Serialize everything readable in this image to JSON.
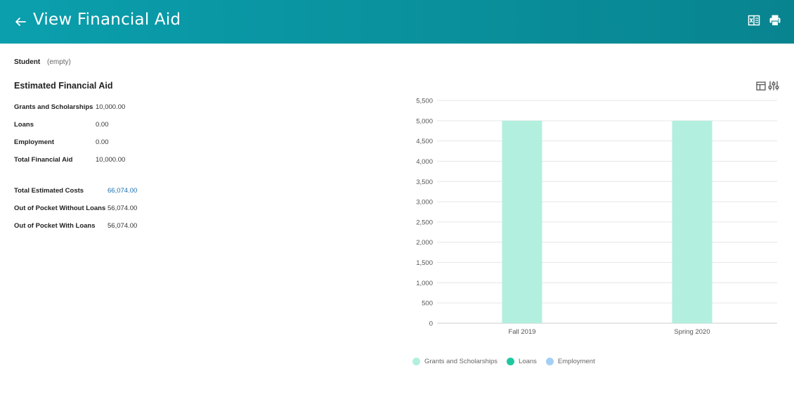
{
  "header": {
    "title": "View Financial Aid",
    "back_icon": "arrow-left-icon",
    "actions": [
      "excel-export-icon",
      "print-icon"
    ],
    "background": "#0a97a4"
  },
  "student": {
    "label": "Student",
    "value": "(empty)"
  },
  "estimated": {
    "title": "Estimated Financial Aid",
    "rows": [
      {
        "label": "Grants and Scholarships",
        "value": "10,000.00"
      },
      {
        "label": "Loans",
        "value": "0.00"
      },
      {
        "label": "Employment",
        "value": "0.00"
      },
      {
        "label": "Total Financial Aid",
        "value": "10,000.00"
      }
    ]
  },
  "costs": {
    "rows": [
      {
        "label": "Total Estimated Costs",
        "value": "66,074.00",
        "link": true
      },
      {
        "label": "Out of Pocket Without Loans",
        "value": "56,074.00"
      },
      {
        "label": "Out of Pocket With Loans",
        "value": "56,074.00"
      }
    ]
  },
  "chart_tools": [
    "table-view-icon",
    "chart-settings-icon"
  ],
  "chart_data": {
    "type": "bar",
    "categories": [
      "Fall 2019",
      "Spring 2020"
    ],
    "series": [
      {
        "name": "Grants and Scholarships",
        "values": [
          5000,
          5000
        ],
        "color": "#b2efdf"
      },
      {
        "name": "Loans",
        "values": [
          0,
          0
        ],
        "color": "#1ec8a0"
      },
      {
        "name": "Employment",
        "values": [
          0,
          0
        ],
        "color": "#a5cef5"
      }
    ],
    "ylim": [
      0,
      5500
    ],
    "yticks": [
      "0",
      "500",
      "1,000",
      "1,500",
      "2,000",
      "2,500",
      "3,000",
      "3,500",
      "4,000",
      "4,500",
      "5,000",
      "5,500"
    ],
    "grid": true,
    "legend": "bottom"
  }
}
